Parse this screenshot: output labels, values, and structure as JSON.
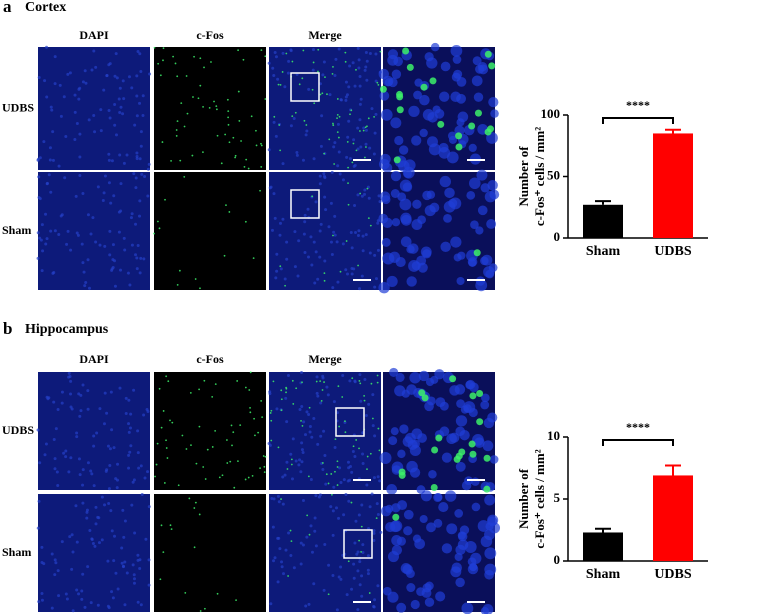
{
  "panels": [
    {
      "label": "a",
      "title": "Cortex",
      "columns": [
        "DAPI",
        "c-Fos",
        "Merge"
      ],
      "rows": [
        "UDBS",
        "Sham"
      ]
    },
    {
      "label": "b",
      "title": "Hippocampus",
      "columns": [
        "DAPI",
        "c-Fos",
        "Merge"
      ],
      "rows": [
        "UDBS",
        "Sham"
      ]
    }
  ],
  "chart_data": [
    {
      "type": "bar",
      "ylabel": [
        "Number of",
        "c-Fos⁺ cells / mm²"
      ],
      "categories": [
        "Sham",
        "UDBS"
      ],
      "values": [
        27,
        85
      ],
      "errors": [
        3,
        3
      ],
      "colors": [
        "#000000",
        "#ff0000"
      ],
      "ylim": [
        0,
        100
      ],
      "yticks": [
        0,
        50,
        100
      ],
      "significance": "****"
    },
    {
      "type": "bar",
      "ylabel": [
        "Number of",
        "c-Fos⁺ cells / mm²"
      ],
      "categories": [
        "Sham",
        "UDBS"
      ],
      "values": [
        2.3,
        6.9
      ],
      "errors": [
        0.3,
        0.8
      ],
      "colors": [
        "#000000",
        "#ff0000"
      ],
      "ylim": [
        0,
        10
      ],
      "yticks": [
        0,
        5,
        10
      ],
      "significance": "****"
    }
  ]
}
